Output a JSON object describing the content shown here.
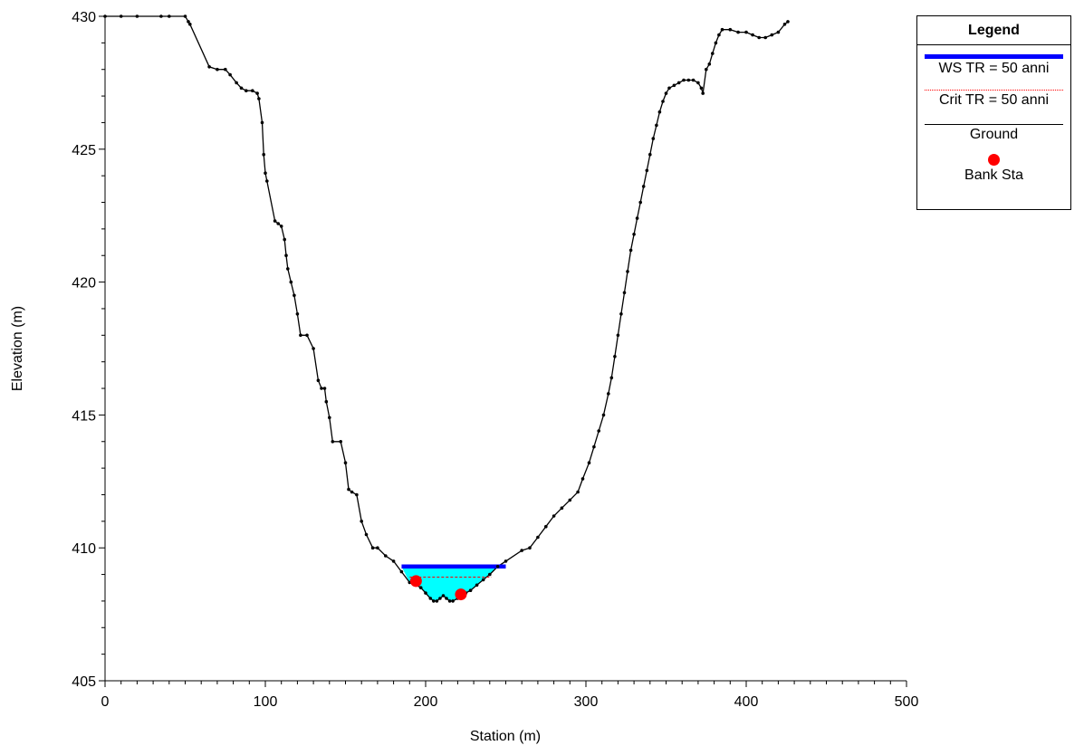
{
  "chart_data": {
    "type": "line",
    "xlabel": "Station (m)",
    "ylabel": "Elevation (m)",
    "xlim": [
      0,
      500
    ],
    "ylim": [
      405,
      430
    ],
    "x_ticks": [
      0,
      100,
      200,
      300,
      400,
      500
    ],
    "y_ticks": [
      405,
      410,
      415,
      420,
      425,
      430
    ],
    "grid": false,
    "legend_position": "top-right",
    "legend_title": "Legend",
    "series": [
      {
        "name": "WS TR = 50 anni",
        "kind": "water-surface",
        "color": "#0000ff",
        "elevation": 409.3,
        "x_range": [
          185,
          250
        ]
      },
      {
        "name": "Crit TR = 50 anni",
        "kind": "critical-depth",
        "color": "#ff0000",
        "elevation": 408.9,
        "x_range": [
          190,
          241
        ]
      },
      {
        "name": "Ground",
        "kind": "ground",
        "color": "#000000",
        "points": [
          [
            0,
            430
          ],
          [
            10,
            430
          ],
          [
            20,
            430
          ],
          [
            35,
            430
          ],
          [
            40,
            430
          ],
          [
            50,
            430
          ],
          [
            52,
            429.8
          ],
          [
            53,
            429.7
          ],
          [
            65,
            428.1
          ],
          [
            70,
            428
          ],
          [
            75,
            428
          ],
          [
            78,
            427.8
          ],
          [
            82,
            427.5
          ],
          [
            85,
            427.3
          ],
          [
            88,
            427.2
          ],
          [
            92,
            427.2
          ],
          [
            95,
            427.1
          ],
          [
            96,
            426.9
          ],
          [
            98,
            426
          ],
          [
            99,
            424.8
          ],
          [
            100,
            424.1
          ],
          [
            101,
            423.8
          ],
          [
            106,
            422.3
          ],
          [
            108,
            422.2
          ],
          [
            110,
            422.1
          ],
          [
            112,
            421.6
          ],
          [
            113,
            421
          ],
          [
            114,
            420.5
          ],
          [
            116,
            420
          ],
          [
            118,
            419.5
          ],
          [
            120,
            418.8
          ],
          [
            122,
            418
          ],
          [
            126,
            418
          ],
          [
            130,
            417.5
          ],
          [
            133,
            416.3
          ],
          [
            135,
            416
          ],
          [
            137,
            416
          ],
          [
            138,
            415.5
          ],
          [
            140,
            414.9
          ],
          [
            142,
            414
          ],
          [
            147,
            414
          ],
          [
            150,
            413.2
          ],
          [
            152,
            412.2
          ],
          [
            154,
            412.1
          ],
          [
            157,
            412
          ],
          [
            160,
            411
          ],
          [
            163,
            410.5
          ],
          [
            167,
            410
          ],
          [
            170,
            410
          ],
          [
            175,
            409.7
          ],
          [
            180,
            409.5
          ],
          [
            185,
            409.1
          ],
          [
            190,
            408.7
          ],
          [
            194,
            408.6
          ],
          [
            197,
            408.5
          ],
          [
            200,
            408.3
          ],
          [
            203,
            408.1
          ],
          [
            205,
            408
          ],
          [
            207,
            408
          ],
          [
            209,
            408.1
          ],
          [
            211,
            408.2
          ],
          [
            213,
            408.1
          ],
          [
            215,
            408
          ],
          [
            217,
            408
          ],
          [
            220,
            408.1
          ],
          [
            223,
            408.2
          ],
          [
            225,
            408.3
          ],
          [
            228,
            408.4
          ],
          [
            232,
            408.6
          ],
          [
            236,
            408.8
          ],
          [
            240,
            409
          ],
          [
            245,
            409.3
          ],
          [
            250,
            409.5
          ],
          [
            260,
            409.9
          ],
          [
            265,
            410
          ],
          [
            270,
            410.4
          ],
          [
            275,
            410.8
          ],
          [
            280,
            411.2
          ],
          [
            285,
            411.5
          ],
          [
            290,
            411.8
          ],
          [
            295,
            412.1
          ],
          [
            298,
            412.6
          ],
          [
            302,
            413.2
          ],
          [
            305,
            413.8
          ],
          [
            308,
            414.4
          ],
          [
            311,
            415
          ],
          [
            314,
            415.8
          ],
          [
            316,
            416.4
          ],
          [
            318,
            417.2
          ],
          [
            320,
            418
          ],
          [
            322,
            418.8
          ],
          [
            324,
            419.6
          ],
          [
            326,
            420.4
          ],
          [
            328,
            421.2
          ],
          [
            330,
            421.8
          ],
          [
            332,
            422.4
          ],
          [
            334,
            423
          ],
          [
            336,
            423.6
          ],
          [
            338,
            424.2
          ],
          [
            340,
            424.8
          ],
          [
            342,
            425.4
          ],
          [
            344,
            425.9
          ],
          [
            346,
            426.4
          ],
          [
            348,
            426.8
          ],
          [
            350,
            427.1
          ],
          [
            352,
            427.3
          ],
          [
            355,
            427.4
          ],
          [
            358,
            427.5
          ],
          [
            361,
            427.6
          ],
          [
            364,
            427.6
          ],
          [
            367,
            427.6
          ],
          [
            370,
            427.5
          ],
          [
            372,
            427.3
          ],
          [
            373,
            427.1
          ],
          [
            375,
            428
          ],
          [
            377,
            428.2
          ],
          [
            379,
            428.6
          ],
          [
            381,
            429
          ],
          [
            383,
            429.3
          ],
          [
            385,
            429.5
          ],
          [
            390,
            429.5
          ],
          [
            395,
            429.4
          ],
          [
            400,
            429.4
          ],
          [
            404,
            429.3
          ],
          [
            408,
            429.2
          ],
          [
            412,
            429.2
          ],
          [
            416,
            429.3
          ],
          [
            420,
            429.4
          ],
          [
            424,
            429.7
          ],
          [
            426,
            429.8
          ]
        ]
      },
      {
        "name": "Bank Sta",
        "kind": "bank-stations",
        "color": "#ff0000",
        "points": [
          [
            194,
            408.75
          ],
          [
            222,
            408.25
          ]
        ]
      }
    ]
  }
}
